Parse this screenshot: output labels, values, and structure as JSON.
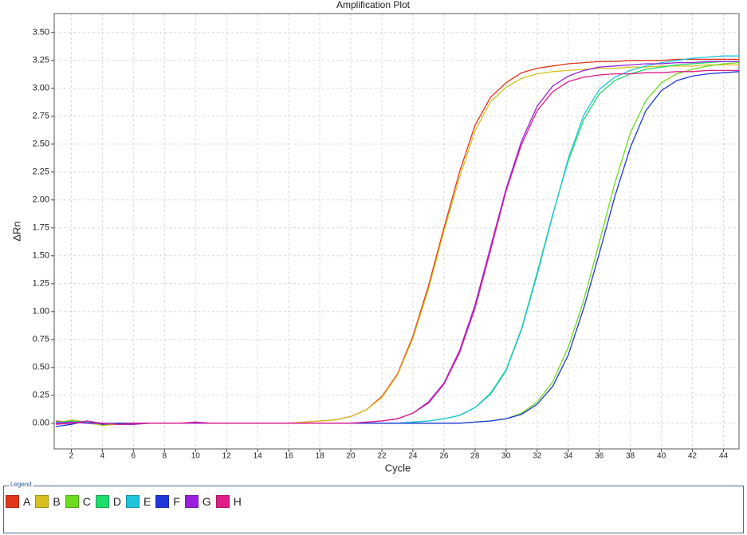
{
  "chart_data": {
    "type": "line",
    "title": "Amplification Plot",
    "x_label": "Cycle",
    "y_label": "ΔRn",
    "legend_title": "Legend",
    "x": [
      1,
      2,
      3,
      4,
      5,
      6,
      7,
      8,
      9,
      10,
      11,
      12,
      13,
      14,
      15,
      16,
      17,
      18,
      19,
      20,
      21,
      22,
      23,
      24,
      25,
      26,
      27,
      28,
      29,
      30,
      31,
      32,
      33,
      34,
      35,
      36,
      37,
      38,
      39,
      40,
      41,
      42,
      43,
      44,
      45
    ],
    "xlim": [
      0.9,
      45
    ],
    "xticks": [
      2,
      4,
      6,
      8,
      10,
      12,
      14,
      16,
      18,
      20,
      22,
      24,
      26,
      28,
      30,
      32,
      34,
      36,
      38,
      40,
      42,
      44
    ],
    "ylim": [
      -0.23,
      3.67
    ],
    "yticks": [
      {
        "value": 0,
        "label": "0.00"
      },
      {
        "value": 0.25,
        "label": "0.25"
      },
      {
        "value": 0.5,
        "label": "0.50"
      },
      {
        "value": 0.75,
        "label": "0.75"
      },
      {
        "value": 1,
        "label": "1.00"
      },
      {
        "value": 1.25,
        "label": "1.25"
      },
      {
        "value": 1.5,
        "label": "1.50"
      },
      {
        "value": 1.75,
        "label": "1.75"
      },
      {
        "value": 2,
        "label": "2.00"
      },
      {
        "value": 2.25,
        "label": "2.25"
      },
      {
        "value": 2.5,
        "label": "2.50"
      },
      {
        "value": 2.75,
        "label": "2.75"
      },
      {
        "value": 3,
        "label": "3.00"
      },
      {
        "value": 3.25,
        "label": "3.25"
      },
      {
        "value": 3.5,
        "label": "3.50"
      }
    ],
    "grid": true,
    "series": [
      {
        "name": "A",
        "color": "#e0361c",
        "values": [
          0.02,
          0.01,
          0.0,
          -0.01,
          -0.01,
          0.0,
          0.0,
          0.0,
          0.0,
          0.01,
          0.0,
          0.0,
          0.0,
          0.0,
          0.0,
          0.0,
          0.01,
          0.02,
          0.03,
          0.06,
          0.12,
          0.24,
          0.44,
          0.78,
          1.23,
          1.75,
          2.25,
          2.67,
          2.92,
          3.05,
          3.14,
          3.18,
          3.2,
          3.22,
          3.23,
          3.24,
          3.24,
          3.25,
          3.25,
          3.25,
          3.26,
          3.26,
          3.26,
          3.26,
          3.26
        ]
      },
      {
        "name": "B",
        "color": "#d6c01e",
        "values": [
          0.0,
          0.03,
          0.01,
          -0.02,
          -0.01,
          -0.01,
          0.0,
          0.0,
          0.0,
          0.0,
          0.0,
          0.0,
          0.0,
          0.0,
          0.0,
          0.0,
          0.01,
          0.02,
          0.03,
          0.06,
          0.12,
          0.23,
          0.43,
          0.76,
          1.2,
          1.72,
          2.2,
          2.62,
          2.88,
          3.01,
          3.09,
          3.13,
          3.15,
          3.16,
          3.17,
          3.18,
          3.18,
          3.19,
          3.19,
          3.2,
          3.2,
          3.2,
          3.21,
          3.21,
          3.21
        ]
      },
      {
        "name": "C",
        "color": "#6edc1e",
        "values": [
          0.01,
          0.02,
          0.0,
          -0.01,
          0.0,
          0.0,
          0.0,
          0.0,
          0.0,
          0.0,
          0.0,
          0.0,
          0.0,
          0.0,
          0.0,
          0.0,
          0.0,
          0.0,
          0.0,
          0.0,
          0.0,
          0.0,
          0.0,
          0.0,
          0.0,
          0.0,
          0.0,
          0.01,
          0.02,
          0.04,
          0.09,
          0.19,
          0.37,
          0.68,
          1.1,
          1.62,
          2.15,
          2.6,
          2.89,
          3.05,
          3.13,
          3.17,
          3.2,
          3.22,
          3.23
        ]
      },
      {
        "name": "D",
        "color": "#1edc6a",
        "values": [
          0.0,
          0.02,
          0.01,
          0.0,
          -0.01,
          0.0,
          0.0,
          0.0,
          0.0,
          0.0,
          0.0,
          0.0,
          0.0,
          0.0,
          0.0,
          0.0,
          0.0,
          0.0,
          0.0,
          0.0,
          0.0,
          0.0,
          0.0,
          0.01,
          0.02,
          0.04,
          0.07,
          0.14,
          0.27,
          0.48,
          0.85,
          1.35,
          1.87,
          2.35,
          2.72,
          2.95,
          3.07,
          3.13,
          3.17,
          3.19,
          3.21,
          3.22,
          3.23,
          3.24,
          3.24
        ]
      },
      {
        "name": "E",
        "color": "#1ec4dc",
        "values": [
          0.01,
          0.0,
          0.01,
          0.0,
          0.0,
          0.0,
          0.0,
          0.0,
          0.0,
          0.0,
          0.0,
          0.0,
          0.0,
          0.0,
          0.0,
          0.0,
          0.0,
          0.0,
          0.0,
          0.0,
          0.0,
          0.0,
          0.0,
          0.01,
          0.02,
          0.04,
          0.07,
          0.14,
          0.26,
          0.47,
          0.84,
          1.33,
          1.86,
          2.37,
          2.76,
          2.99,
          3.1,
          3.16,
          3.2,
          3.23,
          3.25,
          3.27,
          3.28,
          3.29,
          3.29
        ]
      },
      {
        "name": "F",
        "color": "#1e36dc",
        "values": [
          -0.03,
          -0.01,
          0.02,
          -0.01,
          0.0,
          0.0,
          0.0,
          0.0,
          0.0,
          0.0,
          0.0,
          0.0,
          0.0,
          0.0,
          0.0,
          0.0,
          0.0,
          0.0,
          0.0,
          0.0,
          0.0,
          0.0,
          0.0,
          0.0,
          0.0,
          0.0,
          0.0,
          0.01,
          0.02,
          0.04,
          0.08,
          0.17,
          0.33,
          0.61,
          1.03,
          1.52,
          2.03,
          2.47,
          2.8,
          2.98,
          3.07,
          3.11,
          3.13,
          3.14,
          3.15
        ]
      },
      {
        "name": "G",
        "color": "#9a1edc",
        "values": [
          0.0,
          0.01,
          0.0,
          0.0,
          -0.01,
          -0.01,
          0.0,
          0.0,
          0.0,
          0.0,
          0.0,
          0.0,
          0.0,
          0.0,
          0.0,
          0.0,
          0.0,
          0.0,
          0.0,
          0.0,
          0.01,
          0.02,
          0.04,
          0.09,
          0.19,
          0.36,
          0.65,
          1.06,
          1.58,
          2.1,
          2.53,
          2.84,
          3.02,
          3.11,
          3.16,
          3.19,
          3.2,
          3.21,
          3.22,
          3.22,
          3.23,
          3.23,
          3.24,
          3.24,
          3.24
        ]
      },
      {
        "name": "H",
        "color": "#e01e8a",
        "values": [
          -0.01,
          0.0,
          0.02,
          0.0,
          -0.01,
          0.0,
          0.0,
          0.0,
          0.0,
          0.01,
          0.0,
          0.0,
          0.0,
          0.0,
          0.0,
          0.0,
          0.0,
          0.0,
          0.0,
          0.0,
          0.01,
          0.02,
          0.04,
          0.09,
          0.18,
          0.35,
          0.63,
          1.03,
          1.55,
          2.08,
          2.5,
          2.8,
          2.97,
          3.06,
          3.1,
          3.12,
          3.13,
          3.13,
          3.14,
          3.14,
          3.15,
          3.15,
          3.16,
          3.16,
          3.16
        ]
      }
    ]
  }
}
